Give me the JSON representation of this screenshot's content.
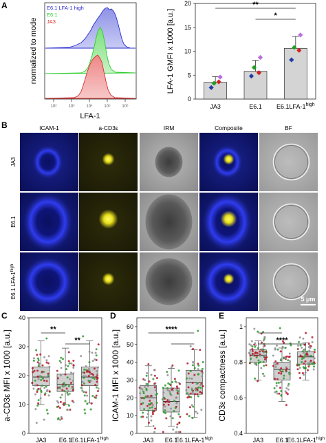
{
  "panels": {
    "A": "A",
    "B": "B",
    "C": "C",
    "D": "D",
    "E": "E"
  },
  "histogram": {
    "ylabel": "normalized to mode",
    "xlabel": "LFA-1",
    "ticks": [
      "10²",
      "10³",
      "10⁴",
      "10⁵",
      "10⁶"
    ],
    "legend": [
      {
        "label": "E6.1 LFA-1 high",
        "color": "#2b2bd0"
      },
      {
        "label": "E6.1",
        "color": "#2ecc2e"
      },
      {
        "label": "JA3",
        "color": "#d83030"
      }
    ]
  },
  "chart_data": [
    {
      "type": "bar",
      "panel": "A",
      "categories": [
        "JA3",
        "E6.1",
        "E6.1LFA-1high"
      ],
      "values": [
        3.5,
        5.8,
        10.6
      ],
      "errors": [
        1.2,
        2.3,
        2.5
      ],
      "points": [
        [
          2.4,
          3.6,
          3.3,
          4.6
        ],
        [
          4.8,
          5.5,
          6.6,
          8.7
        ],
        [
          8.2,
          10.2,
          10.8,
          13.4
        ]
      ],
      "point_colors": [
        "#1f3aa8",
        "#d02020",
        "#22a022",
        "#b86ee0"
      ],
      "ylabel": "LFA-1 GMFI x 1000 [a.u.]",
      "ylim": [
        0,
        20
      ],
      "yticks": [
        0,
        5,
        10,
        15,
        20
      ],
      "significance": [
        {
          "from": 0,
          "to": 2,
          "label": "**"
        },
        {
          "from": 1,
          "to": 2,
          "label": "*"
        }
      ]
    },
    {
      "type": "scatter",
      "panel": "C",
      "categories": [
        "JA3",
        "E6.1",
        "E6.1LFA-1high"
      ],
      "medians": [
        19.5,
        17.0,
        19.5
      ],
      "q1": [
        16.5,
        14.5,
        16.5
      ],
      "q3": [
        23.0,
        20.5,
        23.0
      ],
      "whisker_low": [
        10.0,
        10.0,
        10.5
      ],
      "whisker_high": [
        32.0,
        29.5,
        32.0
      ],
      "ylabel": "a-CD3ε MFI x 1000 [a.u.]",
      "ylim": [
        0,
        40
      ],
      "yticks": [
        0,
        10,
        20,
        30,
        40
      ],
      "significance": [
        {
          "from": 0,
          "to": 1,
          "label": "**"
        },
        {
          "from": 1,
          "to": 2,
          "label": "**"
        }
      ]
    },
    {
      "type": "scatter",
      "panel": "D",
      "categories": [
        "JA3",
        "E6.1",
        "E6.1LFA-1high"
      ],
      "medians": [
        20.0,
        18.0,
        28.5
      ],
      "q1": [
        13.0,
        12.0,
        22.0
      ],
      "q3": [
        27.0,
        25.5,
        35.5
      ],
      "whisker_low": [
        4.0,
        4.0,
        9.0
      ],
      "whisker_high": [
        38.0,
        36.5,
        47.0
      ],
      "ylabel": "ICAM-1 MFI x 1000 [a.u.]",
      "ylim": [
        0,
        65
      ],
      "yticks": [
        0,
        10,
        20,
        30,
        40,
        50,
        60
      ],
      "significance": [
        {
          "from": 0,
          "to": 2,
          "label": "****"
        },
        {
          "from": 1,
          "to": 2,
          "label": ""
        }
      ]
    },
    {
      "type": "scatter",
      "panel": "E",
      "categories": [
        "JA3",
        "E6.1",
        "E6.1LFA-1high"
      ],
      "medians": [
        0.84,
        0.76,
        0.83
      ],
      "q1": [
        0.8,
        0.7,
        0.79
      ],
      "q3": [
        0.87,
        0.8,
        0.86
      ],
      "whisker_low": [
        0.7,
        0.58,
        0.7
      ],
      "whisker_high": [
        0.92,
        0.88,
        0.91
      ],
      "ylabel": "CD3ε compactness [a.u.]",
      "ylim": [
        0.4,
        1.05
      ],
      "yticks": [
        0.4,
        0.6,
        0.8,
        1.0
      ],
      "significance": [
        {
          "from": 0,
          "to": 1,
          "label": ""
        },
        {
          "from": 0,
          "to": 2,
          "label": "****"
        }
      ]
    }
  ],
  "category_labels": {
    "ja3": "JA3",
    "e61": "E6.1",
    "high_main": "E6.1LFA-1",
    "high_sup": "high",
    "high_main_c": "E6.1LFA-1",
    "high_sup_c": "high"
  },
  "microscopy": {
    "columns": [
      "ICAM-1",
      "a-CD3ε",
      "IRM",
      "Composite",
      "BF"
    ],
    "rows": [
      {
        "label": "JA3"
      },
      {
        "label": "E6.1"
      },
      {
        "label_main": "E6.1 LFA-1",
        "label_sup": "high"
      }
    ],
    "scale_bar": "5 μm"
  },
  "colors": {
    "bar_fill": "#d4d4d4",
    "box_fill": "#cfcfcf",
    "dot_red": "#b5192b",
    "dot_green": "#2e9a2e",
    "dot_gray": "#8e8e8e",
    "icam_blue": "#1a22b8",
    "cd3_yellow": "#e9e01e"
  }
}
